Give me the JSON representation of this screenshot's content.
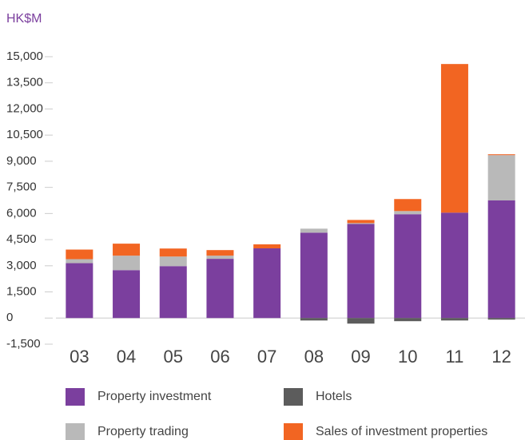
{
  "chart_data": {
    "type": "stacked_bar",
    "y_label": "HK$M",
    "categories": [
      "03",
      "04",
      "05",
      "06",
      "07",
      "08",
      "09",
      "10",
      "11",
      "12"
    ],
    "series": [
      {
        "name": "Property investment",
        "color": "#7b3f9e",
        "values": [
          3150,
          2750,
          2980,
          3400,
          4000,
          4900,
          5400,
          5960,
          6050,
          6750
        ]
      },
      {
        "name": "Property trading",
        "color": "#b9b9b9",
        "values": [
          230,
          830,
          550,
          180,
          0,
          230,
          50,
          180,
          0,
          2600
        ]
      },
      {
        "name": "Sales of investment properties",
        "color": "#f26522",
        "values": [
          550,
          690,
          460,
          320,
          230,
          0,
          180,
          690,
          8530,
          50
        ]
      },
      {
        "name": "Hotels",
        "color": "#5c5c5c",
        "values": [
          0,
          0,
          0,
          0,
          0,
          -140,
          -320,
          -180,
          -140,
          -90
        ]
      }
    ],
    "ylim": [
      -1500,
      15000
    ],
    "yticks": [
      {
        "value": -1500,
        "label": "-1,500"
      },
      0,
      {
        "value": 1500,
        "label": "1,500"
      },
      {
        "value": 3000,
        "label": "3,000"
      },
      {
        "value": 4500,
        "label": "4,500"
      },
      {
        "value": 6000,
        "label": "6,000"
      },
      {
        "value": 7500,
        "label": "7,500"
      },
      {
        "value": 9000,
        "label": "9,000"
      },
      {
        "value": 10500,
        "label": "10,500"
      },
      {
        "value": 12000,
        "label": "12,000"
      },
      {
        "value": 13500,
        "label": "13,500"
      },
      {
        "value": 15000,
        "label": "15,000"
      }
    ]
  }
}
